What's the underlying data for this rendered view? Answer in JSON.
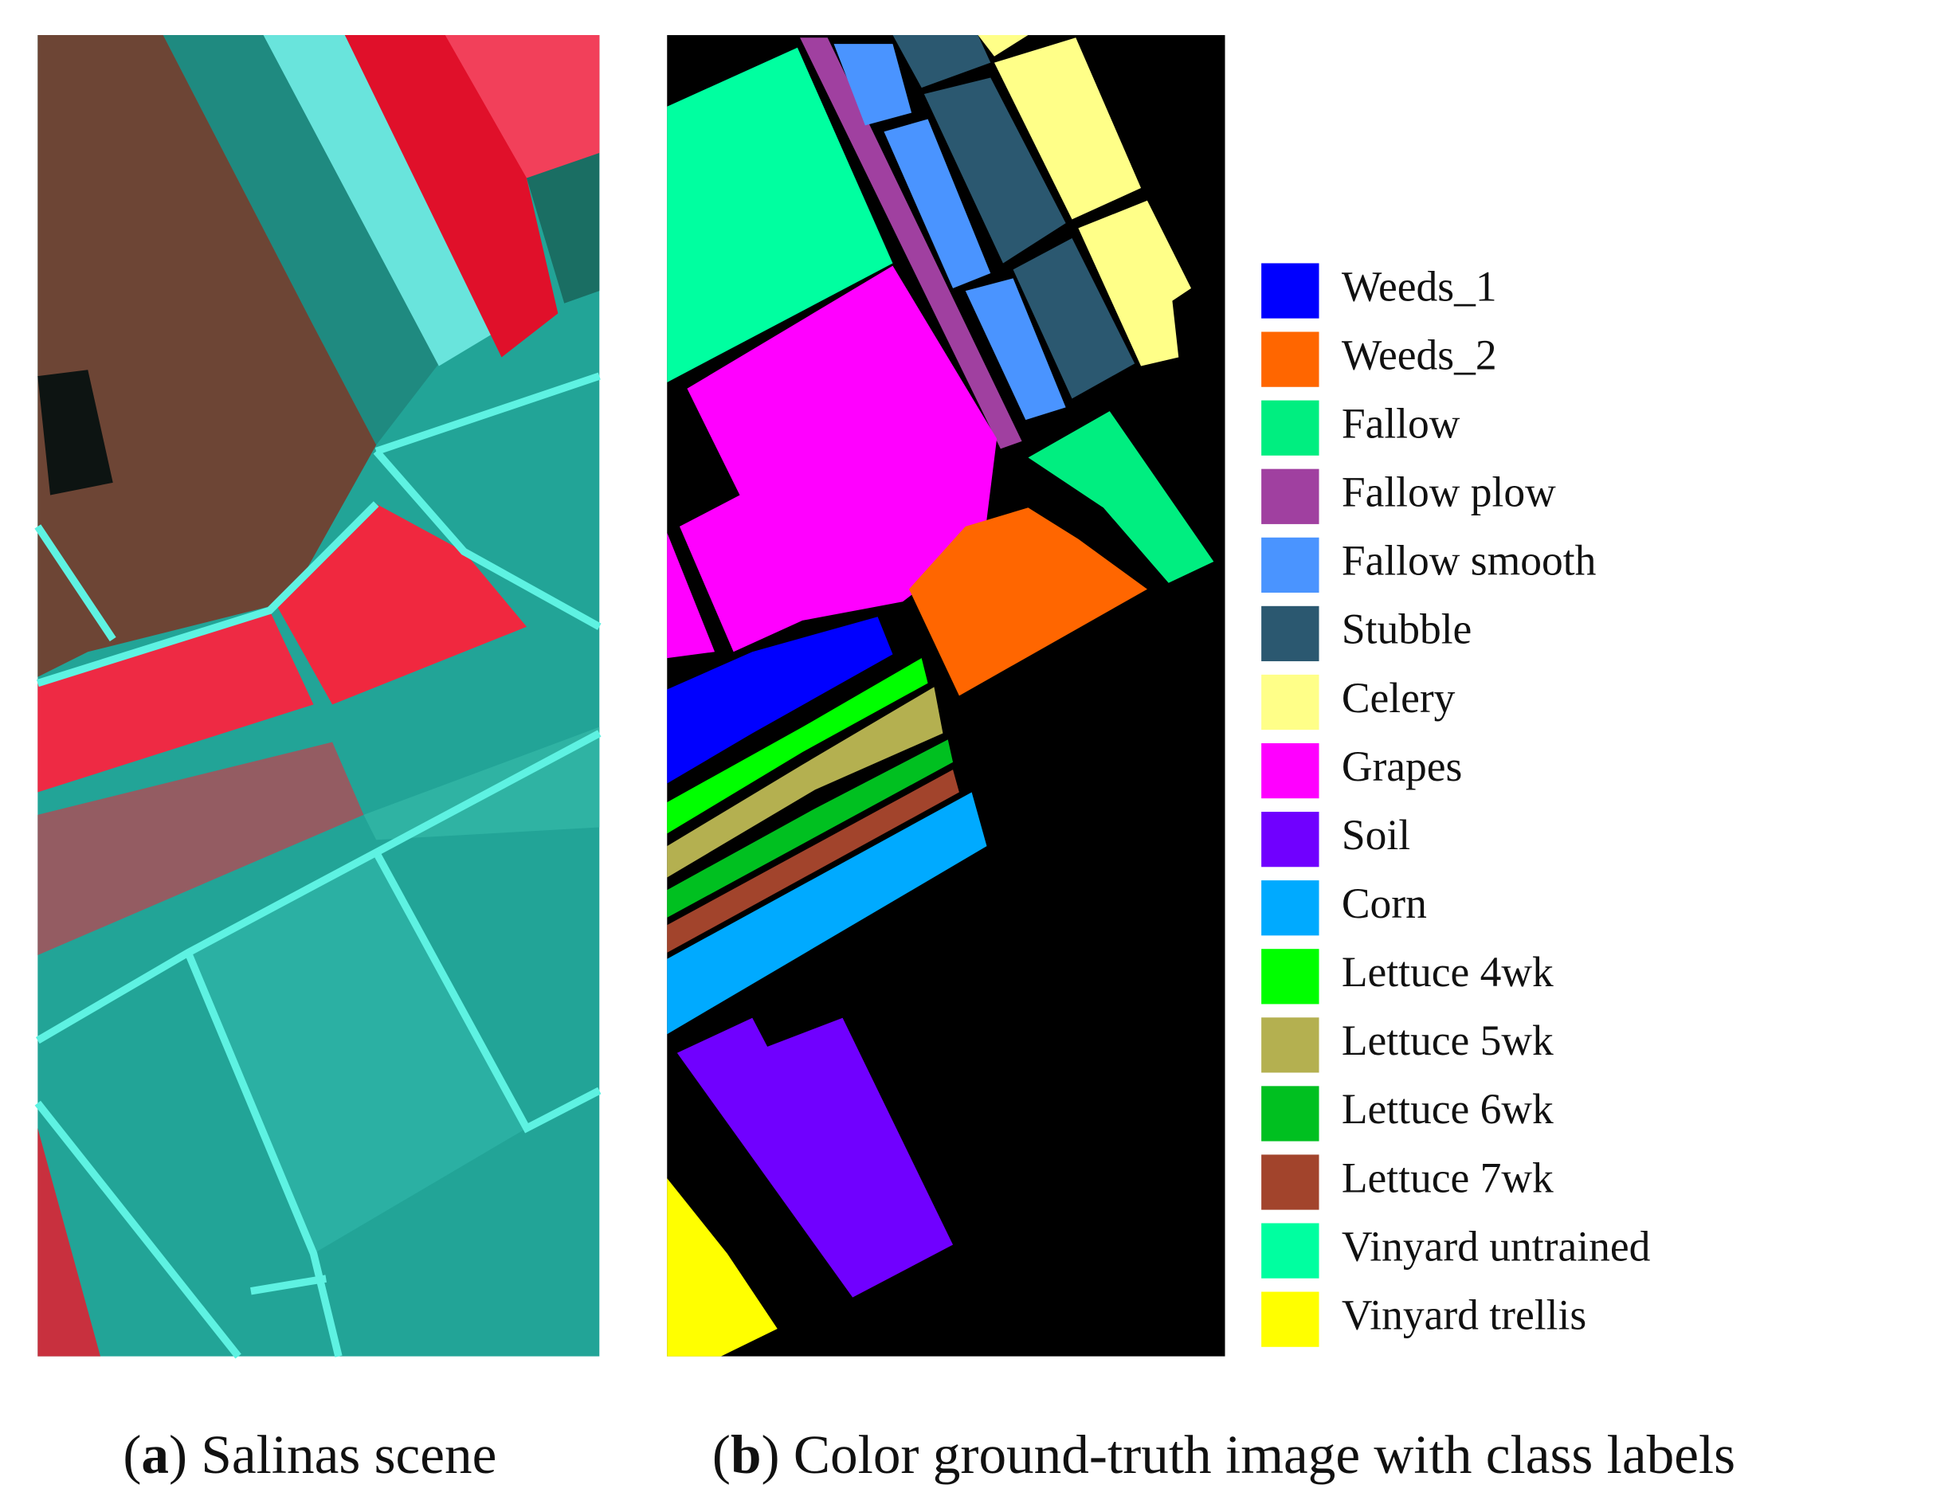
{
  "panels": [
    {
      "open": "(",
      "label": "a",
      "caption": ") Salinas scene"
    },
    {
      "open": "(",
      "label": "b",
      "caption": ") Color ground-truth image with class labels"
    }
  ],
  "legend": [
    {
      "name": "Weeds_1",
      "color": "#0000ff"
    },
    {
      "name": "Weeds_2",
      "color": "#ff6600"
    },
    {
      "name": "Fallow",
      "color": "#00ee80"
    },
    {
      "name": "Fallow plow",
      "color": "#a040a0"
    },
    {
      "name": "Fallow smooth",
      "color": "#4a94ff"
    },
    {
      "name": "Stubble",
      "color": "#2b5870"
    },
    {
      "name": "Celery",
      "color": "#ffff88"
    },
    {
      "name": "Grapes",
      "color": "#ff00ff"
    },
    {
      "name": "Soil",
      "color": "#7000ff"
    },
    {
      "name": "Corn",
      "color": "#00aaff"
    },
    {
      "name": "Lettuce 4wk",
      "color": "#00ff00"
    },
    {
      "name": "Lettuce 5wk",
      "color": "#b4b050"
    },
    {
      "name": "Lettuce 6wk",
      "color": "#00c020"
    },
    {
      "name": "Lettuce 7wk",
      "color": "#a2442c"
    },
    {
      "name": "Vinyard untrained",
      "color": "#00ffa0"
    },
    {
      "name": "Vinyard trellis",
      "color": "#ffff00"
    }
  ]
}
